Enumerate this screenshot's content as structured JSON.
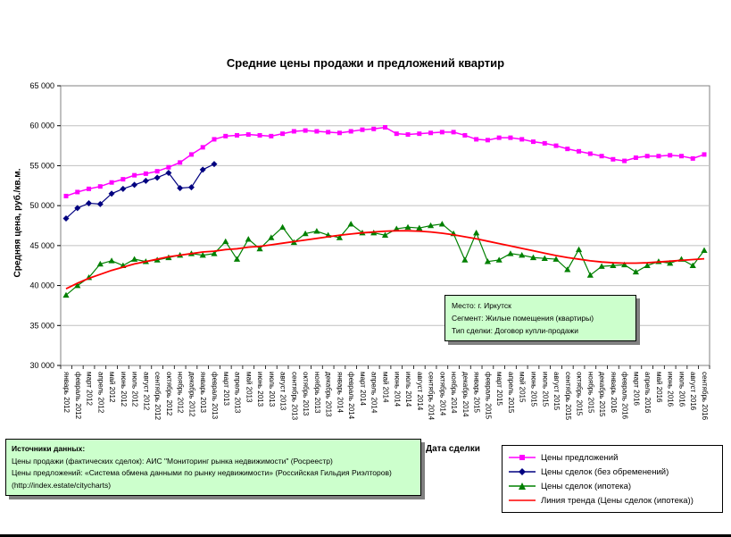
{
  "chart_data": {
    "type": "line",
    "title": "Средние цены продажи и предложений квартир",
    "ylabel": "Средняя цена, руб./кв.м.",
    "xlabel": "Дата сделки",
    "ylim": [
      30000,
      65000
    ],
    "ytick_step": 5000,
    "grid": true,
    "xtick_rotation": 90,
    "legend_position": "bottom-right",
    "categories": [
      "январь 2012",
      "февраль 2012",
      "март 2012",
      "апрель 2012",
      "май 2012",
      "июнь 2012",
      "июль 2012",
      "август 2012",
      "сентябрь 2012",
      "октябрь 2012",
      "ноябрь 2012",
      "декабрь 2012",
      "январь 2013",
      "февраль 2013",
      "март 2013",
      "апрель 2013",
      "май 2013",
      "июнь 2013",
      "июль 2013",
      "август 2013",
      "сентябрь 2013",
      "октябрь 2013",
      "ноябрь 2013",
      "декабрь 2013",
      "январь 2014",
      "февраль 2014",
      "март 2014",
      "апрель 2014",
      "май 2014",
      "июнь 2014",
      "июль 2014",
      "август 2014",
      "сентябрь 2014",
      "октябрь 2014",
      "ноябрь 2014",
      "декабрь 2014",
      "январь 2015",
      "февраль 2015",
      "март 2015",
      "апрель 2015",
      "май 2015",
      "июнь 2015",
      "июль 2015",
      "август 2015",
      "сентябрь 2015",
      "октябрь 2015",
      "ноябрь 2015",
      "декабрь 2015",
      "январь 2016",
      "февраль 2016",
      "март 2016",
      "апрель 2016",
      "май 2016",
      "июнь 2016",
      "июль 2016",
      "август 2016",
      "сентябрь 2016"
    ],
    "series": [
      {
        "name": "Цены предложений",
        "color": "#FF00FF",
        "marker": "square",
        "values": [
          51200,
          51700,
          52100,
          52400,
          52900,
          53300,
          53800,
          54000,
          54300,
          54800,
          55400,
          56400,
          57300,
          58300,
          58700,
          58800,
          58900,
          58800,
          58700,
          59000,
          59300,
          59400,
          59300,
          59200,
          59100,
          59300,
          59500,
          59600,
          59800,
          59000,
          58900,
          59000,
          59100,
          59200,
          59200,
          58800,
          58300,
          58200,
          58500,
          58500,
          58300,
          58000,
          57800,
          57500,
          57100,
          56800,
          56500,
          56200,
          55800,
          55600,
          56000,
          56200,
          56200,
          56300,
          56200,
          55900,
          56400
        ]
      },
      {
        "name": "Цены сделок (без обременений)",
        "color": "#000080",
        "marker": "diamond",
        "values": [
          48400,
          49700,
          50300,
          50200,
          51500,
          52100,
          52600,
          53100,
          53500,
          54100,
          52200,
          52300,
          54500,
          55200,
          null,
          null,
          null,
          null,
          null,
          null,
          null,
          null,
          null,
          null,
          null,
          null,
          null,
          null,
          null,
          null,
          null,
          null,
          null,
          null,
          null,
          null,
          null,
          null,
          null,
          null,
          null,
          null,
          null,
          null,
          null,
          null,
          null,
          null,
          null,
          null,
          null,
          null,
          null,
          null,
          null,
          null,
          null
        ]
      },
      {
        "name": "Цены сделок (ипотека)",
        "color": "#008000",
        "marker": "triangle",
        "values": [
          38800,
          40000,
          41000,
          42700,
          43100,
          42500,
          43300,
          43000,
          43200,
          43500,
          43800,
          44000,
          43800,
          44000,
          45500,
          43300,
          45800,
          44600,
          46000,
          47300,
          45400,
          46500,
          46800,
          46300,
          46000,
          47700,
          46600,
          46600,
          46300,
          47100,
          47300,
          47200,
          47500,
          47700,
          46500,
          43200,
          46600,
          43000,
          43200,
          44000,
          43800,
          43500,
          43400,
          43300,
          42000,
          44500,
          41300,
          42400,
          42500,
          42600,
          41700,
          42500,
          43000,
          42800,
          43300,
          42500,
          44400
        ]
      },
      {
        "name": "Линия тренда (Цены сделок (ипотека))",
        "color": "#FF0000",
        "marker": "none",
        "values": [
          39600,
          40300,
          40900,
          41400,
          41900,
          42300,
          42700,
          43000,
          43300,
          43600,
          43800,
          44000,
          44200,
          44300,
          44500,
          44600,
          44800,
          44900,
          45100,
          45300,
          45500,
          45700,
          45900,
          46100,
          46300,
          46450,
          46600,
          46700,
          46800,
          46850,
          46850,
          46800,
          46700,
          46550,
          46350,
          46100,
          45850,
          45550,
          45250,
          44950,
          44650,
          44350,
          44050,
          43750,
          43500,
          43300,
          43100,
          42950,
          42850,
          42800,
          42800,
          42850,
          42950,
          43050,
          43150,
          43250,
          43350
        ]
      }
    ]
  },
  "annotation": {
    "lines": [
      "Место: г. Иркутск",
      "Сегмент: Жилые помещения (квартиры)",
      "Тип сделки: Договор купли-продажи"
    ]
  },
  "sources": {
    "title": "Источники данных:",
    "lines": [
      "Цены продажи (фактических сделок): АИС \"Мониторинг рынка недвижимости\" (Росреестр)",
      "Цены предложений: «Система обмена данными по рынку недвижимости» (Российская Гильдия Риэлторов)",
      "(http://index.estate/citycharts)"
    ]
  },
  "colors": {
    "grid": "#C0C0C0",
    "plot_border": "#808080",
    "box_bg": "#CCFFCC",
    "box_shadow": "#808080"
  }
}
